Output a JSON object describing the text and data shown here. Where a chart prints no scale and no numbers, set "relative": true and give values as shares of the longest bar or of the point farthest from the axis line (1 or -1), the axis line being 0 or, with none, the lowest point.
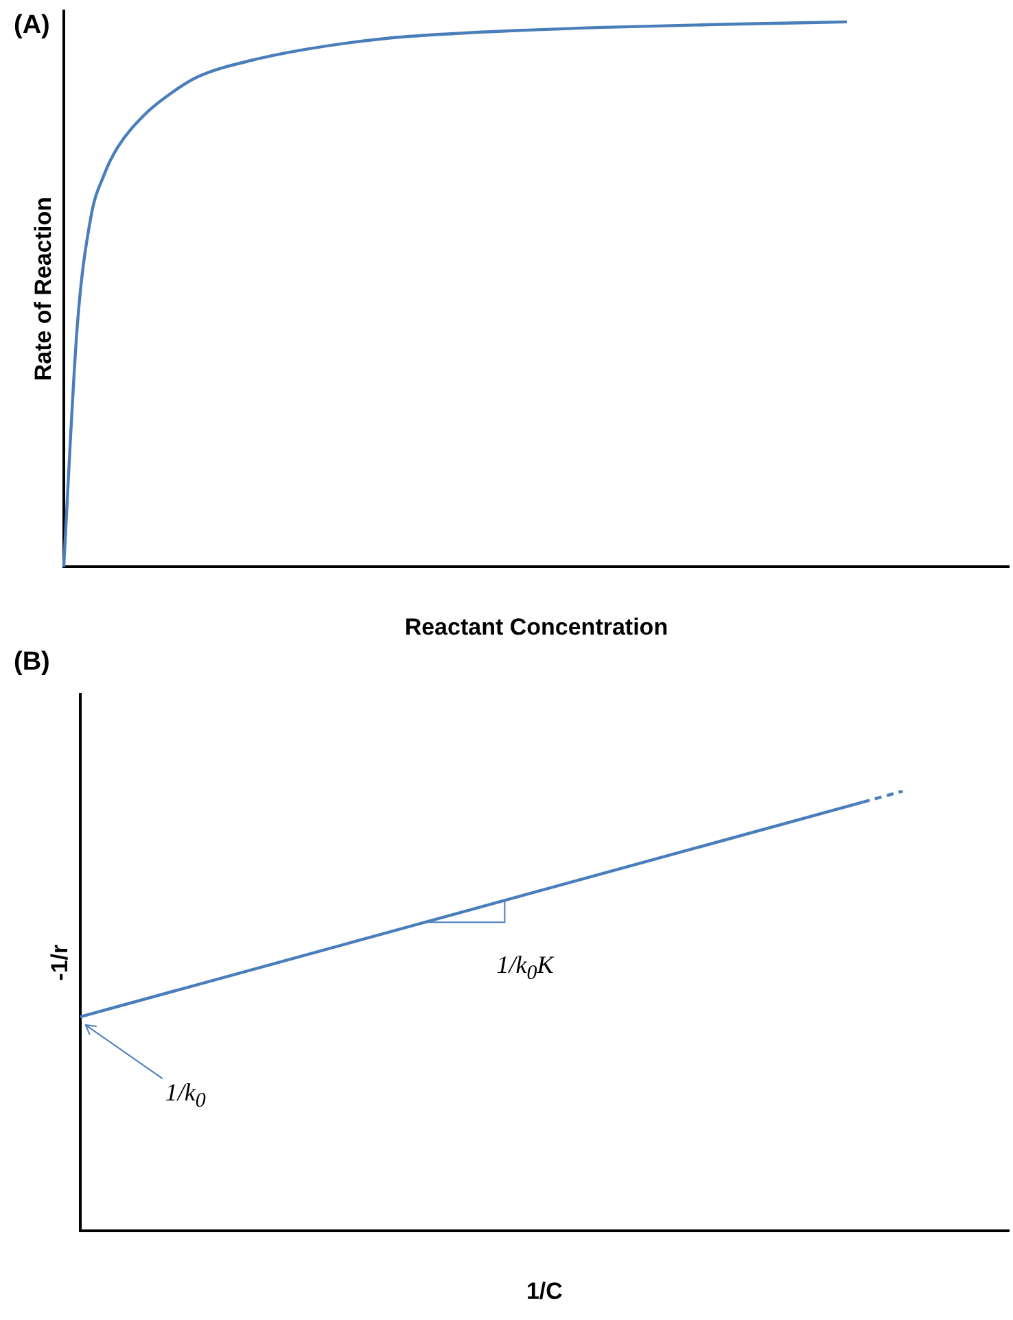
{
  "chart_data": [
    {
      "type": "line",
      "title": "(A)",
      "xlabel": "Reactant Concentration",
      "ylabel": "Rate of Reaction",
      "relative": true,
      "grid": false,
      "legend": false,
      "marker": "none",
      "categories": [
        null,
        null,
        null,
        null,
        null,
        null,
        null,
        null,
        null,
        null,
        null,
        null,
        null,
        null,
        null,
        null,
        null,
        null,
        null,
        null,
        null,
        null,
        null,
        null,
        null,
        null,
        null,
        null,
        null,
        null,
        null,
        null,
        null,
        null,
        null,
        null,
        null,
        null,
        null,
        null,
        null,
        null,
        null,
        null,
        null,
        null,
        null,
        null,
        null,
        null,
        null,
        null,
        null,
        null,
        null,
        null,
        null,
        null,
        null,
        null,
        null,
        null,
        null,
        null,
        null,
        null,
        null,
        null,
        null,
        null,
        null
      ],
      "series": [
        {
          "color": "#4a7ebb",
          "line_style": "solid",
          "values": [
            0,
            0.44,
            0.64,
            0.72,
            0.77,
            null,
            0.83,
            null,
            0.87,
            null,
            0.9,
            null,
            null,
            null,
            0.93,
            null,
            null,
            null,
            0.95,
            null,
            null,
            null,
            null,
            null,
            0.97,
            null,
            null,
            null,
            null,
            null,
            0.98,
            null,
            null,
            null,
            null,
            null,
            null,
            null,
            null,
            null,
            0.99,
            null,
            null,
            null,
            null,
            null,
            null,
            null,
            null,
            null,
            0.996,
            null,
            null,
            null,
            null,
            null,
            null,
            null,
            1,
            null,
            null,
            null,
            null,
            null,
            null,
            null,
            null,
            null,
            null,
            null,
            null
          ]
        }
      ]
    },
    {
      "type": "line",
      "title": "(B)",
      "xlabel": "1/C",
      "ylabel": "-1/r",
      "relative": true,
      "grid": false,
      "legend": false,
      "marker": "none",
      "annotations": [
        "1/k$_{0}$",
        "1/k$_{0}$K"
      ],
      "categories": [
        null,
        null,
        null,
        null,
        null,
        null,
        null,
        null,
        null,
        null,
        null,
        null,
        null,
        null,
        null,
        null,
        null,
        null,
        null,
        null,
        null,
        null,
        null,
        null,
        null,
        null,
        null,
        null,
        null,
        null,
        null,
        null,
        null,
        null,
        null,
        null,
        null,
        null,
        null,
        null,
        null,
        null,
        null,
        null,
        null,
        null,
        null,
        null,
        null,
        null,
        null,
        null,
        null,
        null,
        null,
        null,
        null,
        null,
        null,
        null,
        null,
        null,
        null,
        null,
        null,
        null,
        null,
        null,
        null,
        null,
        null
      ],
      "series": [
        {
          "color": "#4a7ebb",
          "line_style": "solid",
          "values": [
            0.487,
            null,
            null,
            null,
            null,
            null,
            null,
            null,
            null,
            null,
            null,
            null,
            null,
            null,
            null,
            null,
            null,
            null,
            null,
            null,
            null,
            null,
            null,
            null,
            null,
            null,
            null,
            null,
            null,
            null,
            null,
            null,
            null,
            null,
            null,
            null,
            null,
            null,
            null,
            null,
            null,
            null,
            null,
            null,
            null,
            null,
            null,
            null,
            null,
            null,
            null,
            null,
            null,
            null,
            null,
            null,
            null,
            null,
            null,
            0.975,
            null,
            null,
            null,
            null,
            null,
            null,
            null,
            null,
            null,
            null,
            null
          ]
        },
        {
          "color": "#4a7ebb",
          "line_style": "dashed",
          "values": [
            null,
            null,
            null,
            null,
            null,
            null,
            null,
            null,
            null,
            null,
            null,
            null,
            null,
            null,
            null,
            null,
            null,
            null,
            null,
            null,
            null,
            null,
            null,
            null,
            null,
            null,
            null,
            null,
            null,
            null,
            null,
            null,
            null,
            null,
            null,
            null,
            null,
            null,
            null,
            null,
            null,
            null,
            null,
            null,
            null,
            null,
            null,
            null,
            null,
            null,
            null,
            null,
            null,
            null,
            null,
            null,
            null,
            null,
            null,
            0.975,
            null,
            null,
            1,
            null,
            null,
            null,
            null,
            null,
            null,
            null,
            null
          ]
        }
      ]
    }
  ]
}
